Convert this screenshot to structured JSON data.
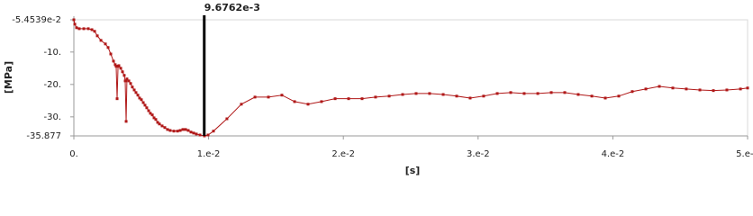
{
  "chart_data": {
    "type": "line",
    "x_label": "[s]",
    "y_label": "[MPa]",
    "cursor": {
      "value": 0.0096762,
      "label": "9.6762e-3"
    },
    "xlim": [
      0,
      0.05
    ],
    "xticks": [
      {
        "value": 0,
        "label": "0."
      },
      {
        "value": 0.01,
        "label": "1.e-2"
      },
      {
        "value": 0.02,
        "label": "2.e-2"
      },
      {
        "value": 0.03,
        "label": "3.e-2"
      },
      {
        "value": 0.04,
        "label": "4.e-2"
      },
      {
        "value": 0.05,
        "label": "5.e-2"
      }
    ],
    "ylim": [
      -35.877,
      -0.054539
    ],
    "yticks": [
      {
        "value": -0.054539,
        "label": "-5.4539e-2"
      },
      {
        "value": -10,
        "label": "-10."
      },
      {
        "value": -20,
        "label": "-20."
      },
      {
        "value": -30,
        "label": "-30."
      },
      -35.877
    ],
    "series": [
      {
        "color": "#b01818",
        "x": [
          0,
          7e-05,
          0.0002,
          0.0004,
          0.00074,
          0.00107,
          0.00134,
          0.00154,
          0.00174,
          0.00201,
          0.00234,
          0.00254,
          0.00274,
          0.00294,
          0.00307,
          0.00314,
          0.00321,
          0.00328,
          0.00334,
          0.00348,
          0.00361,
          0.00374,
          0.00381,
          0.00388,
          0.00394,
          0.00408,
          0.00421,
          0.00434,
          0.00448,
          0.00461,
          0.00475,
          0.00488,
          0.00501,
          0.00515,
          0.00528,
          0.00541,
          0.00555,
          0.00568,
          0.00582,
          0.00595,
          0.00608,
          0.00622,
          0.00635,
          0.00655,
          0.00675,
          0.00695,
          0.00715,
          0.00742,
          0.00769,
          0.00789,
          0.00809,
          0.00829,
          0.00849,
          0.00869,
          0.00889,
          0.00909,
          0.00936,
          0.00969,
          0.00996,
          0.01036,
          0.01136,
          0.01243,
          0.01344,
          0.01444,
          0.01544,
          0.01638,
          0.01738,
          0.01838,
          0.01939,
          0.02039,
          0.02139,
          0.02239,
          0.0234,
          0.0244,
          0.0254,
          0.0264,
          0.02741,
          0.02841,
          0.02941,
          0.03041,
          0.03142,
          0.03242,
          0.03342,
          0.03443,
          0.03543,
          0.03643,
          0.03743,
          0.03844,
          0.03944,
          0.04044,
          0.04144,
          0.04245,
          0.04345,
          0.04445,
          0.04545,
          0.04646,
          0.04746,
          0.04846,
          0.04947,
          0.05
        ],
        "values": [
          -0.0545,
          -1.4,
          -2.5,
          -2.8,
          -2.8,
          -2.8,
          -3.1,
          -3.6,
          -5.0,
          -6.4,
          -7.5,
          -8.6,
          -10.6,
          -12.8,
          -13.9,
          -14.4,
          -24.4,
          -14.4,
          -14.2,
          -15.0,
          -16.1,
          -17.2,
          -18.9,
          -31.4,
          -18.3,
          -18.9,
          -19.7,
          -20.8,
          -21.7,
          -22.5,
          -23.3,
          -24.2,
          -24.7,
          -25.6,
          -26.4,
          -27.2,
          -28.1,
          -28.9,
          -29.4,
          -30.3,
          -30.8,
          -31.7,
          -32.2,
          -32.8,
          -33.3,
          -33.9,
          -34.2,
          -34.4,
          -34.4,
          -34.2,
          -33.9,
          -33.9,
          -34.2,
          -34.7,
          -35.0,
          -35.3,
          -35.6,
          -35.877,
          -35.6,
          -34.4,
          -30.6,
          -26.1,
          -23.9,
          -23.9,
          -23.3,
          -25.3,
          -26.1,
          -25.3,
          -24.4,
          -24.4,
          -24.4,
          -23.9,
          -23.6,
          -23.1,
          -22.8,
          -22.8,
          -23.1,
          -23.6,
          -24.2,
          -23.6,
          -22.8,
          -22.5,
          -22.8,
          -22.8,
          -22.5,
          -22.5,
          -23.1,
          -23.6,
          -24.2,
          -23.6,
          -22.2,
          -21.4,
          -20.6,
          -21.1,
          -21.4,
          -21.7,
          -21.9,
          -21.7,
          -21.4,
          -21.1
        ]
      }
    ]
  }
}
